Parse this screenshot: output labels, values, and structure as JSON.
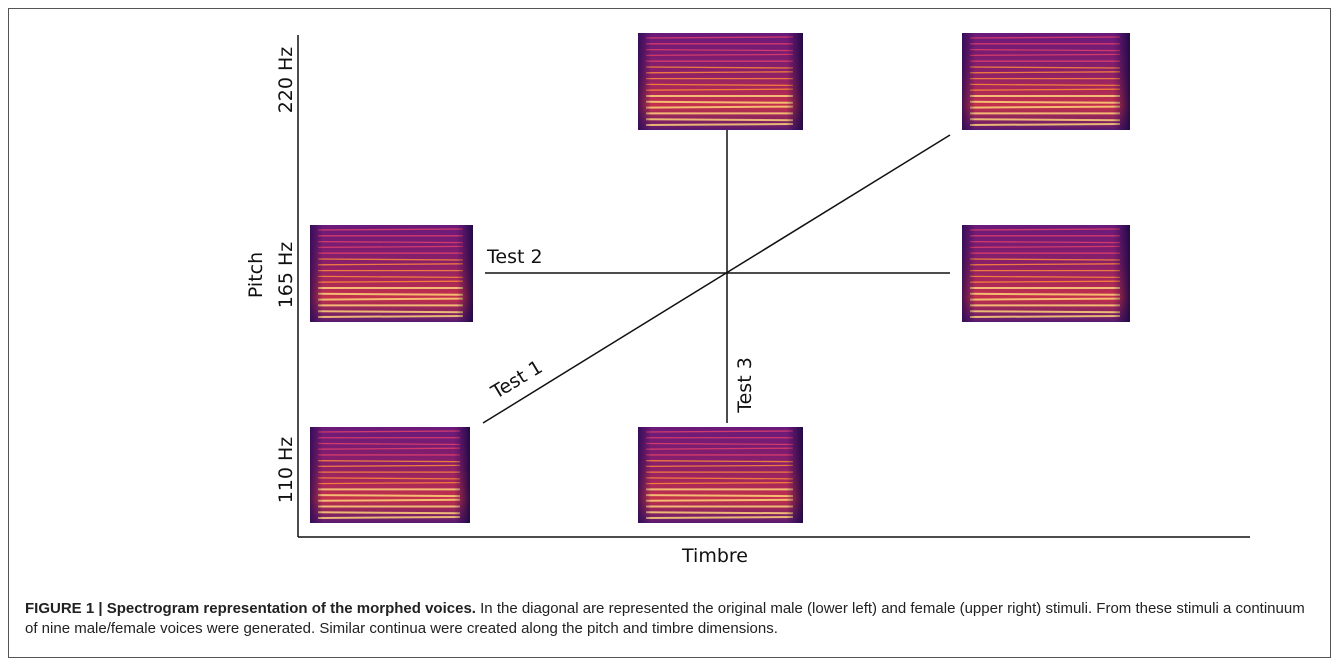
{
  "figure": {
    "y_axis_label": "Pitch",
    "x_axis_label": "Timbre",
    "pitch_labels": [
      "220 Hz",
      "165 Hz",
      "110 Hz"
    ],
    "test_labels": [
      "Test 1",
      "Test 2",
      "Test 3"
    ],
    "caption_title": "FIGURE 1 | Spectrogram representation of the morphed voices.",
    "caption_text": "In the diagonal are represented the original male (lower left) and female (upper right) stimuli. From these stimuli a continuum of nine male/female voices were generated. Similar continua were created along the pitch and timbre dimensions."
  }
}
